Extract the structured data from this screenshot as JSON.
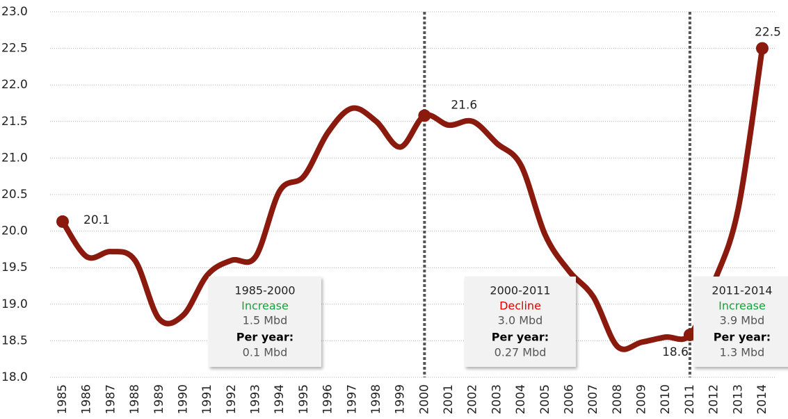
{
  "chart_data": {
    "type": "line",
    "categories": [
      "1985",
      "1986",
      "1987",
      "1988",
      "1989",
      "1990",
      "1991",
      "1992",
      "1993",
      "1994",
      "1995",
      "1996",
      "1997",
      "1998",
      "1999",
      "2000",
      "2001",
      "2002",
      "2003",
      "2004",
      "2005",
      "2006",
      "2007",
      "2008",
      "2009",
      "2010",
      "2011",
      "2012",
      "2013",
      "2014"
    ],
    "series": [
      {
        "color": "#8b1a0e",
        "values": [
          20.13,
          19.65,
          19.72,
          19.6,
          18.8,
          18.85,
          19.4,
          19.6,
          19.65,
          20.55,
          20.75,
          21.35,
          21.68,
          21.5,
          21.15,
          21.58,
          21.45,
          21.5,
          21.2,
          20.9,
          19.95,
          19.45,
          19.1,
          18.42,
          18.48,
          18.55,
          18.58,
          19.3,
          20.3,
          22.5
        ],
        "value_labels": [
          "20.1",
          null,
          null,
          null,
          null,
          null,
          null,
          null,
          null,
          null,
          null,
          null,
          null,
          null,
          null,
          "21.6",
          null,
          null,
          null,
          null,
          null,
          null,
          null,
          null,
          null,
          null,
          "18.6",
          null,
          null,
          "22.5"
        ]
      }
    ],
    "ylim": [
      18.0,
      23.0
    ],
    "yticks": [
      {
        "value": 18,
        "label": "18.0"
      },
      {
        "value": 18.5,
        "label": "18.5"
      },
      {
        "value": 19,
        "label": "19.0"
      },
      {
        "value": 19.5,
        "label": "19.5"
      },
      {
        "value": 20,
        "label": "20.0"
      },
      {
        "value": 20.5,
        "label": "20.5"
      },
      {
        "value": 21,
        "label": "21.0"
      },
      {
        "value": 21.5,
        "label": "21.5"
      },
      {
        "value": 22,
        "label": "22.0"
      },
      {
        "value": 22.5,
        "label": "22.5"
      },
      {
        "value": 23,
        "label": "23.0"
      }
    ],
    "grid": true,
    "dividers": [
      "2000",
      "2011"
    ],
    "boxes": [
      {
        "period": "1985-2000",
        "trend": "Increase",
        "trend_color": "#1a9e3f",
        "total": "1.5 Mbd",
        "per_year_label": "Per year:",
        "per_year": "0.1 Mbd"
      },
      {
        "period": "2000-2011",
        "trend": "Decline",
        "trend_color": "#e00000",
        "total": "3.0 Mbd",
        "per_year_label": "Per year:",
        "per_year": "0.27 Mbd"
      },
      {
        "period": "2011-2014",
        "trend": "Increase",
        "trend_color": "#1a9e3f",
        "total": "3.9 Mbd",
        "per_year_label": "Per year:",
        "per_year": "1.3 Mbd"
      }
    ]
  }
}
